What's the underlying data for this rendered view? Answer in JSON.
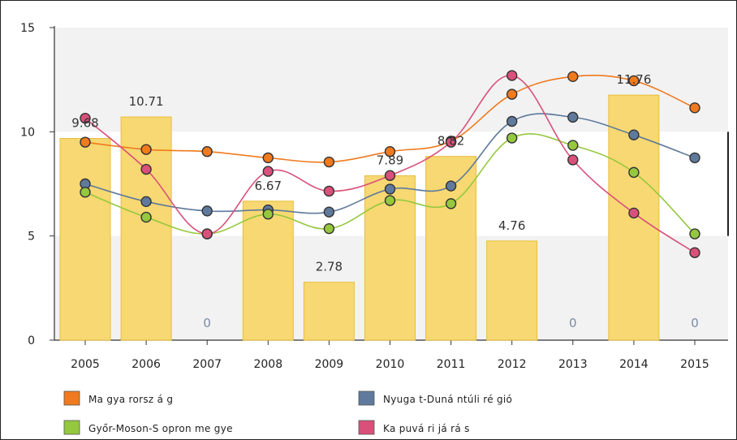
{
  "chart_data": {
    "type": "bar",
    "x": [
      "2005",
      "2006",
      "2007",
      "2008",
      "2009",
      "2010",
      "2011",
      "2012",
      "2013",
      "2014",
      "2015"
    ],
    "ylim": [
      0,
      15
    ],
    "yticks": [
      "0",
      "5",
      "10",
      "15"
    ],
    "bar_series": {
      "values": [
        9.68,
        10.71,
        0,
        6.67,
        2.78,
        7.89,
        8.82,
        4.76,
        0,
        11.76,
        0
      ],
      "labels": [
        "9.68",
        "10.71",
        "0",
        "6.67",
        "2.78",
        "7.89",
        "8.82",
        "4.76",
        "0",
        "11.76",
        "0"
      ],
      "color": "#f7d872"
    },
    "series": [
      {
        "name": "Ma gya rorsz á g",
        "color": "#f07a1e",
        "values": [
          9.5,
          9.15,
          9.05,
          8.75,
          8.55,
          9.05,
          9.55,
          11.8,
          12.65,
          12.45,
          11.15
        ]
      },
      {
        "name": "Nyuga t-Duná ntúli ré gió",
        "color": "#5f7a9c",
        "values": [
          7.5,
          6.65,
          6.2,
          6.25,
          6.15,
          7.25,
          7.4,
          10.5,
          10.7,
          9.85,
          8.75
        ]
      },
      {
        "name": "Győr-Moson-S opron me gye",
        "color": "#95c83e",
        "values": [
          7.1,
          5.9,
          5.1,
          6.05,
          5.35,
          6.7,
          6.55,
          9.7,
          9.35,
          8.05,
          5.1
        ]
      },
      {
        "name": "Ka puvá ri já rá s",
        "color": "#d9507a",
        "values": [
          10.65,
          8.2,
          5.1,
          8.1,
          7.15,
          7.9,
          9.5,
          12.7,
          8.65,
          6.1,
          4.2
        ]
      }
    ],
    "grid": true,
    "legend_position": "bottom"
  }
}
